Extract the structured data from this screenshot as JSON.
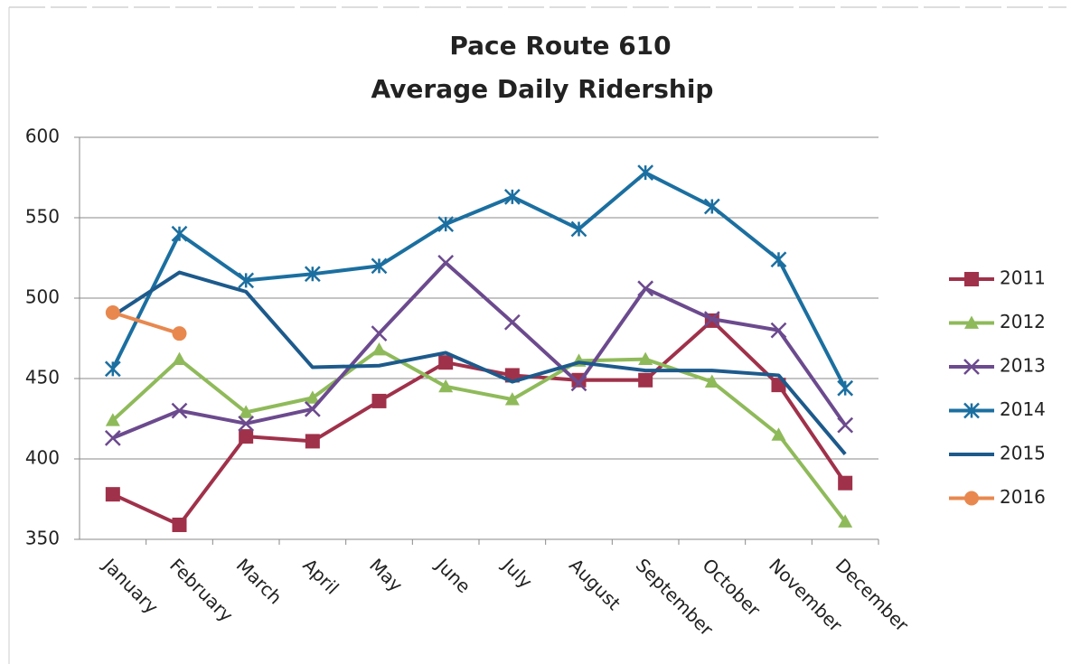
{
  "chart_data": {
    "type": "line",
    "title": [
      "Pace Route 610",
      "Average Daily Ridership"
    ],
    "categories": [
      "January",
      "February",
      "March",
      "April",
      "May",
      "June",
      "July",
      "August",
      "September",
      "October",
      "November",
      "December"
    ],
    "series": [
      {
        "name": "2011",
        "color": "#a0314a",
        "marker": "square",
        "values": [
          378,
          359,
          414,
          411,
          436,
          460,
          452,
          449,
          449,
          486,
          446,
          385
        ]
      },
      {
        "name": "2012",
        "color": "#8fba5a",
        "marker": "triangle",
        "values": [
          424,
          462,
          429,
          438,
          468,
          445,
          437,
          461,
          462,
          448,
          415,
          361
        ]
      },
      {
        "name": "2013",
        "color": "#6c4a8e",
        "marker": "x",
        "values": [
          413,
          430,
          422,
          431,
          478,
          522,
          485,
          447,
          506,
          487,
          480,
          421
        ]
      },
      {
        "name": "2014",
        "color": "#1b6fa0",
        "marker": "asterisk",
        "values": [
          456,
          540,
          511,
          515,
          520,
          546,
          563,
          543,
          578,
          557,
          524,
          444
        ]
      },
      {
        "name": "2015",
        "color": "#1d5a8c",
        "marker": "none",
        "values": [
          489,
          516,
          504,
          457,
          458,
          466,
          448,
          460,
          455,
          455,
          452,
          403
        ]
      },
      {
        "name": "2016",
        "color": "#e8884f",
        "marker": "circle",
        "values": [
          491,
          478,
          null,
          null,
          null,
          null,
          null,
          null,
          null,
          null,
          null,
          null
        ]
      }
    ],
    "ylim": [
      350,
      600
    ],
    "yticks": [
      350,
      400,
      450,
      500,
      550,
      600
    ],
    "grid": true,
    "legend": "right"
  }
}
